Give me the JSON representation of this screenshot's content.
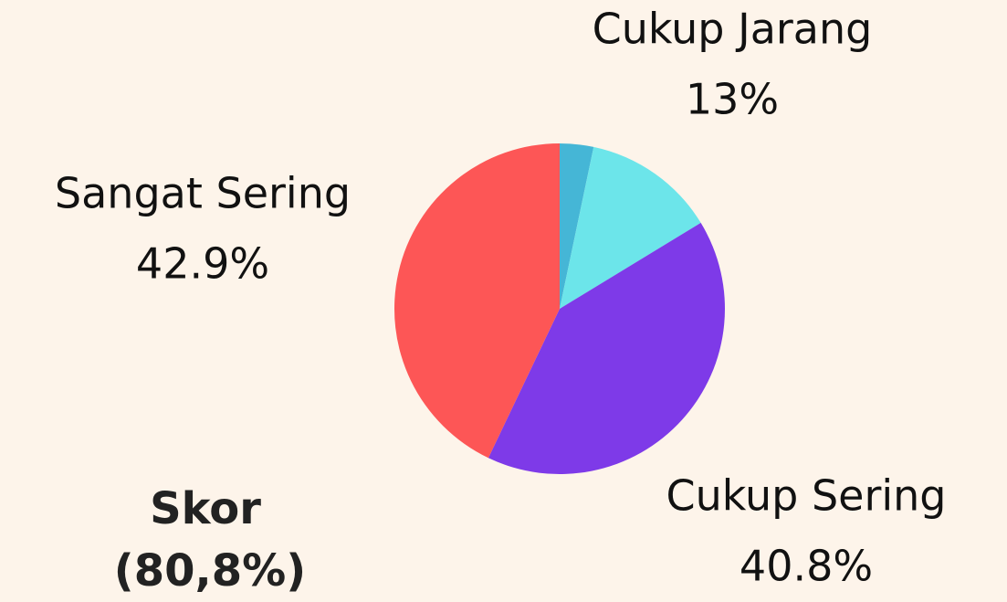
{
  "chart_data": {
    "type": "pie",
    "categories": [
      null,
      "Cukup Jarang",
      "Cukup Sering",
      "Sangat Sering"
    ],
    "values": [
      3.3,
      13,
      40.8,
      42.9
    ],
    "value_labels": [
      null,
      "13%",
      "40.8%",
      "42.9%"
    ],
    "colors": [
      "#45b6d6",
      "#6ce5ea",
      "#7e3ae8",
      "#fd5656"
    ],
    "annotation": [
      "Skor",
      "(80,8%)"
    ]
  }
}
